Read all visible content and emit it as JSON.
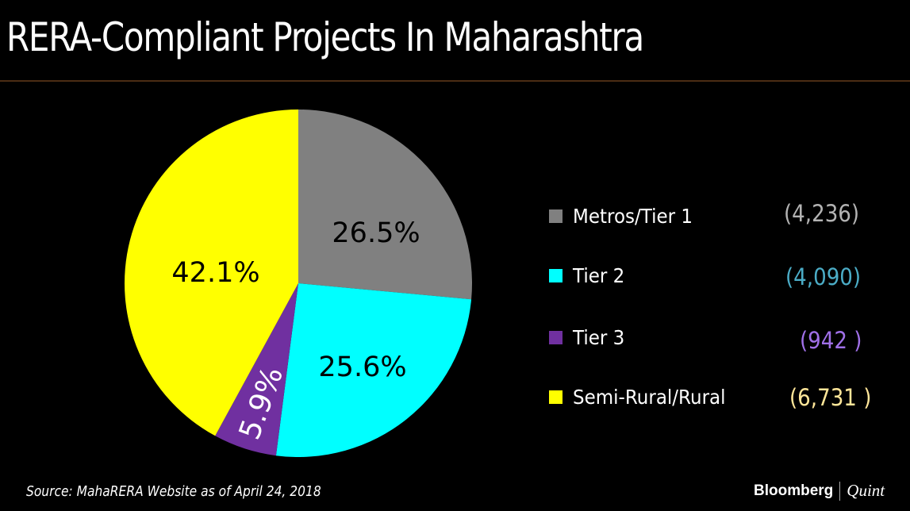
{
  "title": "RERA-Compliant Projects In Maharashtra",
  "source": "Source: MahaRERA Website as of April 24, 2018",
  "brand": {
    "primary": "Bloomberg",
    "secondary": "Quint"
  },
  "colors": {
    "background": "#000000",
    "rule": "#4b2c14"
  },
  "chart_data": {
    "type": "pie",
    "start": "12 o'clock",
    "direction": "clockwise",
    "legend_position": "right",
    "slices": [
      {
        "name": "Metros/Tier 1",
        "percent": 26.5,
        "label": "26.5%",
        "count": "(4,236)",
        "value": 4236,
        "color": "#808080",
        "count_color": "#b3b3b3",
        "label_color": "#000000"
      },
      {
        "name": "Tier 2",
        "percent": 25.6,
        "label": "25.6%",
        "count": "(4,090)",
        "value": 4090,
        "color": "#00ffff",
        "count_color": "#4bacc6",
        "label_color": "#000000"
      },
      {
        "name": "Tier 3",
        "percent": 5.9,
        "label": "5.9%",
        "count": "(942 )",
        "value": 942,
        "color": "#7030a0",
        "count_color": "#a070e8",
        "label_color": "#ffffff"
      },
      {
        "name": "Semi-Rural/Rural",
        "percent": 42.1,
        "label": "42.1%",
        "count": "(6,731 )",
        "value": 6731,
        "color": "#ffff00",
        "count_color": "#ffe699",
        "label_color": "#000000"
      }
    ]
  }
}
